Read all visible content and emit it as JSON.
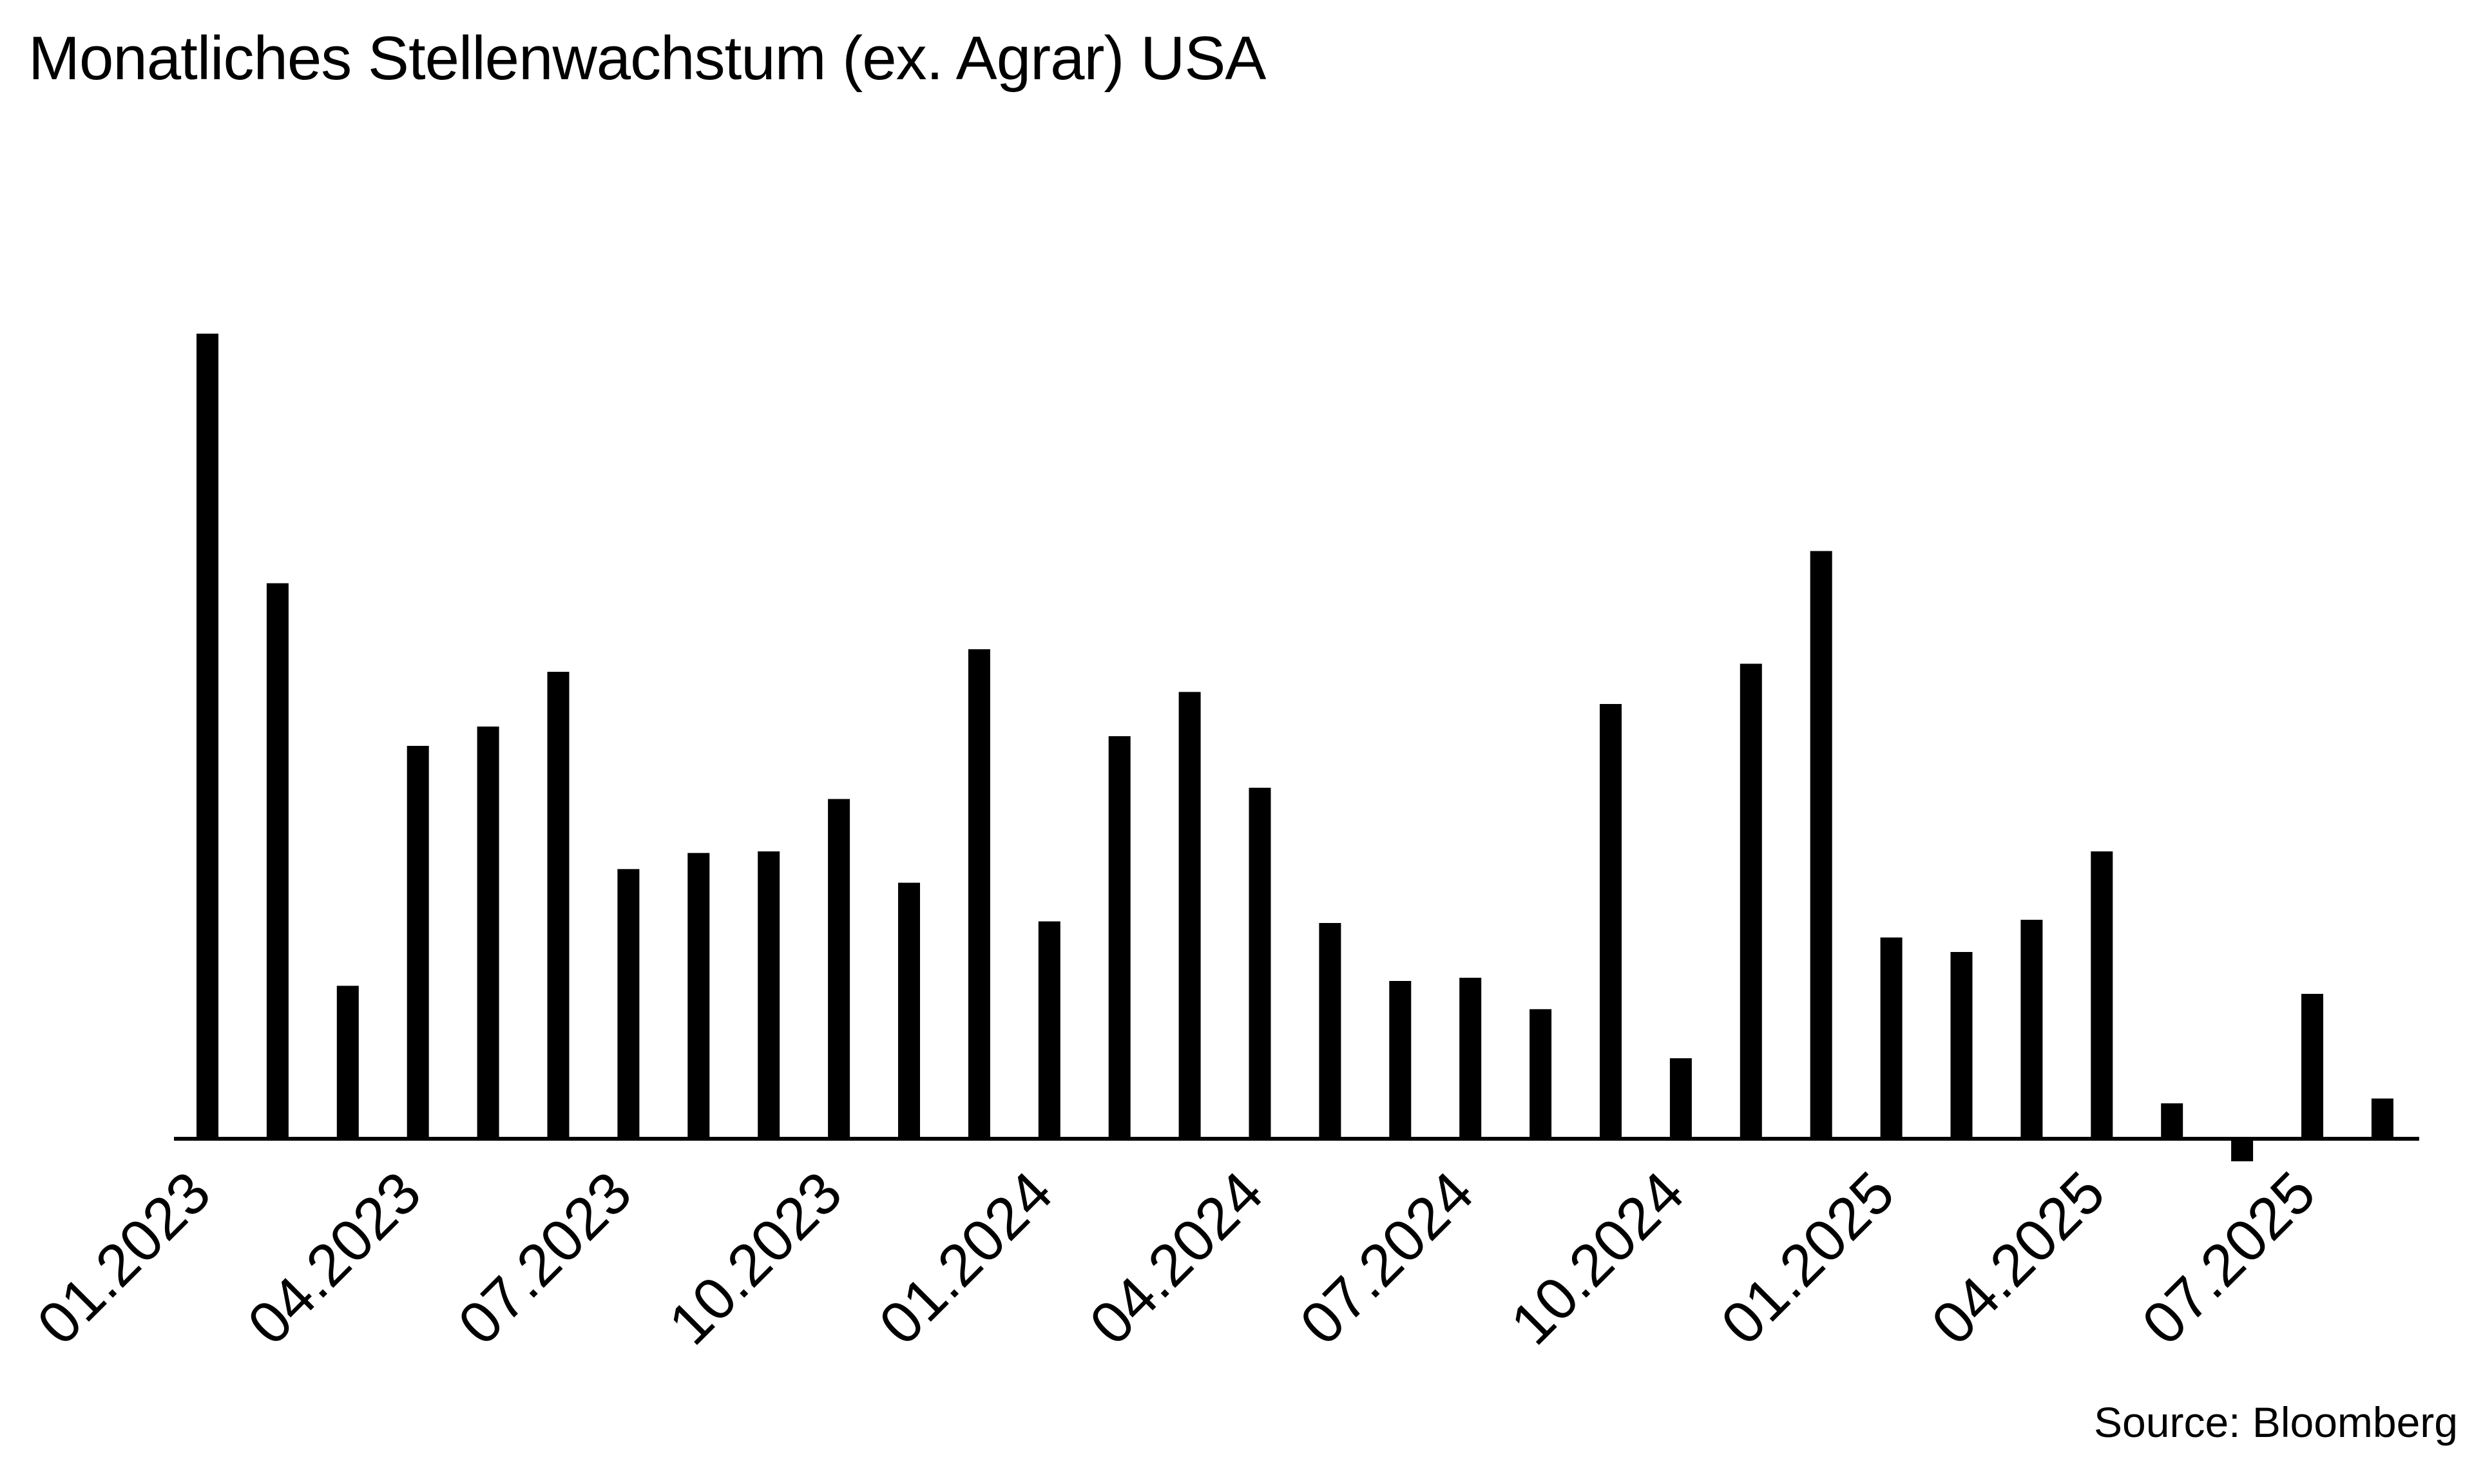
{
  "chart_data": {
    "type": "bar",
    "title": "Monatliches Stellenwachstum (ex. Agrar) USA",
    "source": "Source: Bloomberg",
    "xlabel": "",
    "ylabel": "",
    "ylim": [
      -30,
      1000
    ],
    "grid": false,
    "legend": "none",
    "bar_color": "#000000",
    "categories": [
      "01.2023",
      "02.2023",
      "03.2023",
      "04.2023",
      "05.2023",
      "06.2023",
      "07.2023",
      "08.2023",
      "09.2023",
      "10.2023",
      "11.2023",
      "12.2023",
      "01.2024",
      "02.2024",
      "03.2024",
      "04.2024",
      "05.2024",
      "06.2024",
      "07.2024",
      "08.2024",
      "09.2024",
      "10.2024",
      "11.2024",
      "12.2024",
      "01.2025",
      "02.2025",
      "03.2025",
      "04.2025",
      "05.2025",
      "06.2025",
      "07.2025",
      "08.2025"
    ],
    "values": [
      1000,
      690,
      190,
      488,
      512,
      580,
      335,
      355,
      357,
      422,
      318,
      608,
      270,
      500,
      555,
      436,
      268,
      196,
      200,
      161,
      540,
      100,
      590,
      730,
      250,
      232,
      272,
      357,
      44,
      -28,
      180,
      50
    ],
    "tick_labels": [
      "01.2023",
      "04.2023",
      "07.2023",
      "10.2023",
      "01.2024",
      "04.2024",
      "07.2024",
      "10.2024",
      "01.2025",
      "04.2025",
      "07.2025"
    ]
  }
}
